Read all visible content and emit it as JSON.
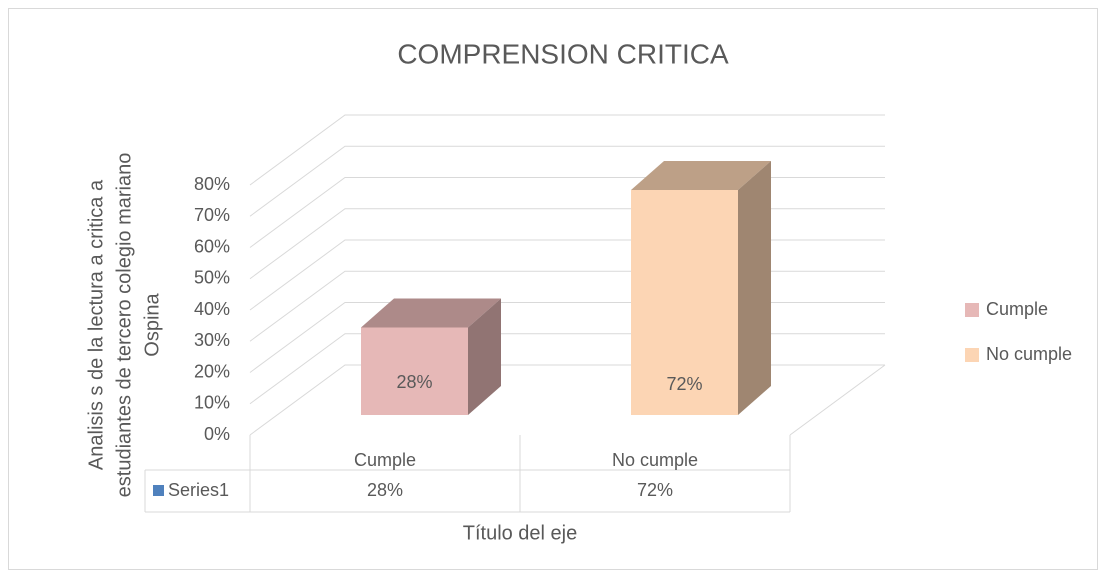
{
  "chart_data": {
    "type": "bar3d",
    "title": "COMPRENSION CRITICA",
    "ylabel": [
      "Analisis s de la lectura a critica a",
      "estudiantes de tercero colegio mariano",
      "Ospina"
    ],
    "xlabel": "Título del eje",
    "categories": [
      "Cumple",
      "No cumple"
    ],
    "series": [
      {
        "name": "Series1",
        "color": "#4f81bd",
        "values": [
          28,
          72
        ],
        "value_labels": [
          "28%",
          "72%"
        ]
      }
    ],
    "point_colors": [
      "#e6b8b7",
      "#fcd5b4"
    ],
    "ylim": [
      0,
      80
    ],
    "yticks": [
      {
        "value": 0,
        "label": "0%"
      },
      {
        "value": 10,
        "label": "10%"
      },
      {
        "value": 20,
        "label": "20%"
      },
      {
        "value": 30,
        "label": "30%"
      },
      {
        "value": 40,
        "label": "40%"
      },
      {
        "value": 50,
        "label": "50%"
      },
      {
        "value": 60,
        "label": "60%"
      },
      {
        "value": 70,
        "label": "70%"
      },
      {
        "value": 80,
        "label": "80%"
      }
    ],
    "grid": true,
    "legend": "right"
  }
}
